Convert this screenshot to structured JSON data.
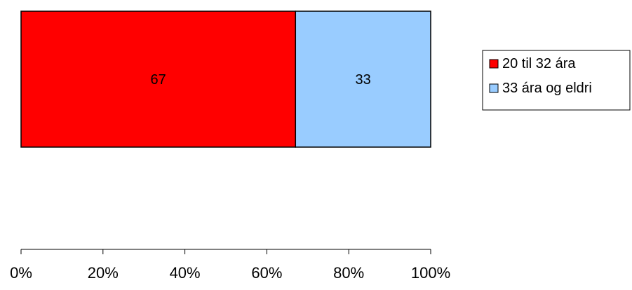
{
  "chart_data": {
    "type": "bar",
    "orientation": "horizontal",
    "stacked": "percent",
    "categories": [
      ""
    ],
    "series": [
      {
        "name": "20 til 32 ára",
        "values": [
          67
        ],
        "color": "#ff0000"
      },
      {
        "name": "33 ára og eldri",
        "values": [
          33
        ],
        "color": "#99ccff"
      }
    ],
    "data_labels": [
      "67",
      "33"
    ],
    "xlim": [
      0,
      100
    ],
    "ticks": [
      0,
      20,
      40,
      60,
      80,
      100
    ],
    "tick_labels": [
      "0%",
      "20%",
      "40%",
      "60%",
      "80%",
      "100%"
    ],
    "grid": false,
    "legend_position": "right",
    "title": "",
    "xlabel": "",
    "ylabel": ""
  }
}
